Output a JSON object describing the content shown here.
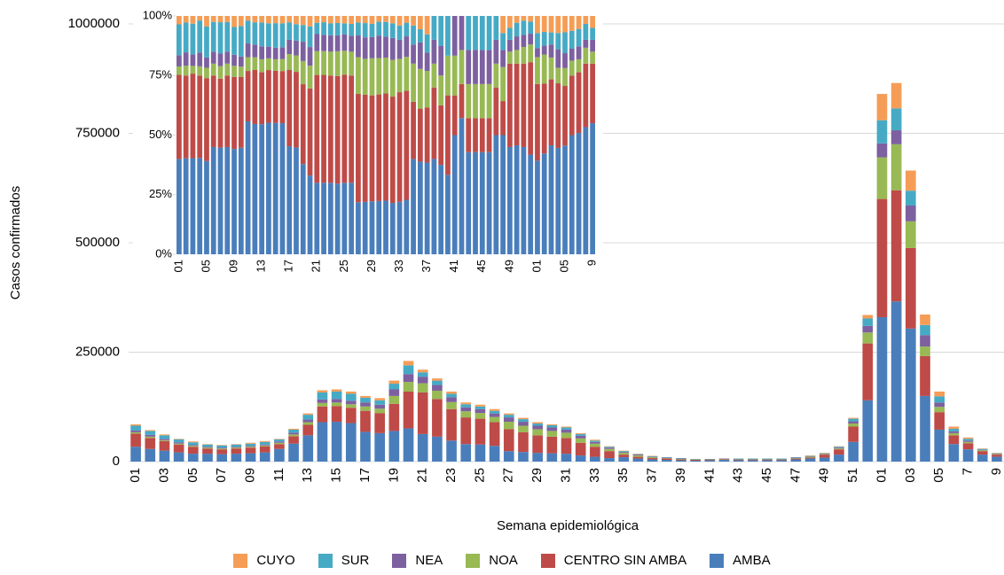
{
  "chart_data": [
    {
      "type": "bar",
      "stacked": true,
      "y_label": "Casos confirmados",
      "x_label": "Semana epidemiológica",
      "categories": [
        "01",
        null,
        "03",
        null,
        "05",
        null,
        "07",
        null,
        "09",
        null,
        "11",
        null,
        "13",
        null,
        "15",
        null,
        "17",
        null,
        "19",
        null,
        "21",
        null,
        "23",
        null,
        "25",
        null,
        "27",
        null,
        "29",
        null,
        "31",
        null,
        "33",
        null,
        "35",
        null,
        "37",
        null,
        "39",
        null,
        "41",
        null,
        "43",
        null,
        "45",
        null,
        "47",
        null,
        "49",
        null,
        "51",
        null,
        "01",
        null,
        "03",
        null,
        "05",
        null,
        "7",
        null,
        "9"
      ],
      "series": [
        {
          "name": "AMBA",
          "color": "#4a7ebb",
          "values": [
            34000,
            29000,
            25000,
            21000,
            18000,
            18000,
            17000,
            18000,
            19000,
            21000,
            29000,
            41000,
            60000,
            90000,
            91000,
            88000,
            68000,
            65000,
            70000,
            76000,
            63000,
            57000,
            48000,
            40000,
            39000,
            36000,
            24000,
            22000,
            20000,
            19000,
            18000,
            14000,
            11000,
            8000,
            10000,
            7000,
            5000,
            4000,
            3000,
            2000,
            3000,
            4000,
            3000,
            3000,
            3000,
            3000,
            5000,
            7000,
            9000,
            16000,
            45000,
            140000,
            330000,
            366000,
            304000,
            150000,
            73000,
            40000,
            28000,
            16000,
            11000
          ]
        },
        {
          "name": "CENTRO SIN AMBA",
          "color": "#be4b48",
          "values": [
            30000,
            25000,
            22000,
            18000,
            16000,
            12000,
            11000,
            12000,
            13000,
            14000,
            11000,
            17000,
            24000,
            36000,
            36000,
            35000,
            48000,
            46000,
            62000,
            84000,
            95000,
            86000,
            72000,
            61000,
            59000,
            54000,
            50000,
            45000,
            40000,
            38000,
            36000,
            29000,
            23000,
            16000,
            6000,
            4000,
            3000,
            3000,
            2000,
            2000,
            1000,
            1000,
            1000,
            1000,
            1000,
            1000,
            2000,
            2000,
            7000,
            12000,
            35000,
            130000,
            270000,
            254000,
            184000,
            91000,
            40000,
            20000,
            14000,
            8000,
            5000
          ]
        },
        {
          "name": "NOA",
          "color": "#98b954",
          "values": [
            3000,
            3000,
            2000,
            2000,
            2000,
            2000,
            2000,
            2000,
            2000,
            2000,
            3000,
            4000,
            6000,
            8000,
            8000,
            8000,
            10000,
            10000,
            18000,
            22000,
            21000,
            19000,
            16000,
            14000,
            13000,
            12000,
            17000,
            15000,
            14000,
            13000,
            12000,
            10000,
            7000,
            5000,
            4000,
            3000,
            2000,
            1000,
            1000,
            1000,
            1000,
            1000,
            1000,
            1000,
            1000,
            1000,
            1000,
            2000,
            1000,
            2000,
            7000,
            25000,
            95000,
            105000,
            61000,
            22000,
            12000,
            5000,
            3000,
            2000,
            1000
          ]
        },
        {
          "name": "NEA",
          "color": "#7d60a0",
          "values": [
            4000,
            4000,
            3000,
            3000,
            2000,
            2000,
            2000,
            2000,
            2000,
            2000,
            3000,
            4000,
            6000,
            8000,
            8000,
            8000,
            9000,
            9000,
            15000,
            18000,
            15000,
            13000,
            11000,
            9000,
            9000,
            8000,
            10000,
            9000,
            8000,
            8000,
            7000,
            6000,
            4000,
            3000,
            2000,
            2000,
            1000,
            1000,
            1000,
            0,
            1000,
            1000,
            1000,
            1000,
            1000,
            1000,
            1000,
            1000,
            1000,
            2000,
            5000,
            15000,
            32000,
            32000,
            36000,
            26000,
            10000,
            4000,
            3000,
            1000,
            1000
          ]
        },
        {
          "name": "SUR",
          "color": "#46aac5",
          "values": [
            11000,
            9000,
            8000,
            7000,
            6000,
            5000,
            5000,
            5000,
            5000,
            6000,
            5000,
            7000,
            11000,
            16000,
            17000,
            16000,
            11000,
            10000,
            13000,
            20000,
            10000,
            10000,
            8000,
            7000,
            6000,
            6000,
            6000,
            6000,
            5000,
            5000,
            5000,
            4000,
            3000,
            2000,
            2000,
            1000,
            1000,
            1000,
            1000,
            1000,
            0,
            0,
            1000,
            1000,
            1000,
            1000,
            1000,
            1000,
            1000,
            2000,
            6000,
            17000,
            53000,
            50000,
            34000,
            23000,
            14000,
            6000,
            4000,
            2000,
            1000
          ]
        },
        {
          "name": "CUYO",
          "color": "#f59d56",
          "values": [
            3000,
            2000,
            2000,
            1000,
            2000,
            1000,
            1000,
            1000,
            2000,
            2000,
            1000,
            2000,
            3000,
            5000,
            5000,
            5000,
            4000,
            5000,
            7000,
            10000,
            6000,
            5000,
            5000,
            4000,
            4000,
            4000,
            3000,
            3000,
            3000,
            2000,
            2000,
            2000,
            2000,
            1000,
            1000,
            1000,
            1000,
            0,
            0,
            0,
            0,
            0,
            0,
            0,
            0,
            0,
            0,
            1000,
            1000,
            1000,
            2000,
            8000,
            60000,
            58000,
            46000,
            24000,
            11000,
            5000,
            3000,
            1000,
            1000
          ]
        }
      ],
      "ylim": [
        0,
        1000000
      ],
      "yticks": [
        0,
        250000,
        500000,
        750000,
        1000000
      ],
      "grid": true,
      "legend": "bottom"
    },
    {
      "type": "bar",
      "stacked": "percent",
      "categories": [
        "01",
        null,
        null,
        null,
        "05",
        null,
        null,
        null,
        "09",
        null,
        null,
        null,
        "13",
        null,
        null,
        null,
        "17",
        null,
        null,
        null,
        "21",
        null,
        null,
        null,
        "25",
        null,
        null,
        null,
        "29",
        null,
        null,
        null,
        "33",
        null,
        null,
        null,
        "37",
        null,
        null,
        null,
        "41",
        null,
        null,
        null,
        "45",
        null,
        null,
        null,
        "49",
        null,
        null,
        null,
        "01",
        null,
        null,
        null,
        "05",
        null,
        null,
        null,
        "9"
      ],
      "ylim": [
        0,
        100
      ],
      "yticks": [
        {
          "value": 0,
          "label": "0%"
        },
        {
          "value": 25,
          "label": "25%"
        },
        {
          "value": 50,
          "label": "50%"
        },
        {
          "value": 75,
          "label": "75%"
        },
        {
          "value": 100,
          "label": "100%"
        }
      ]
    }
  ]
}
